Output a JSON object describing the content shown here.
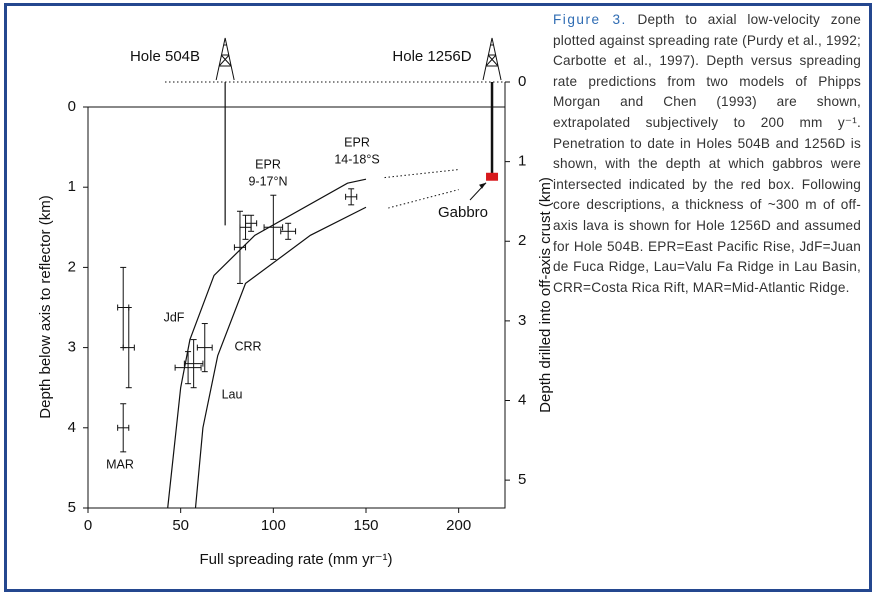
{
  "chart_data": {
    "type": "scatter",
    "xlabel": "Full spreading rate (mm yr⁻¹)",
    "ylabel": "Depth below axis to reflector (km)",
    "y2label": "Depth drilled into off-axis crust (km)",
    "xlim": [
      0,
      225
    ],
    "xticks": [
      0,
      50,
      100,
      150,
      200
    ],
    "ylim": [
      0,
      5
    ],
    "yticks": [
      0,
      1,
      2,
      3,
      4,
      5
    ],
    "y2lim": [
      0,
      5.35
    ],
    "y2ticks": [
      0,
      1,
      2,
      3,
      4,
      5
    ],
    "points": {
      "x": [
        19,
        22,
        19,
        54,
        57,
        63,
        82,
        85,
        88,
        100,
        108,
        142
      ],
      "y": [
        2.5,
        3.0,
        4.0,
        3.25,
        3.2,
        3.0,
        1.75,
        1.5,
        1.45,
        1.5,
        1.55,
        1.12
      ],
      "xerr": [
        3,
        3,
        3,
        7,
        5,
        4,
        3,
        3,
        3,
        5,
        4,
        3
      ],
      "yerr": [
        0.5,
        0.5,
        0.3,
        0.2,
        0.3,
        0.3,
        0.45,
        0.15,
        0.1,
        0.4,
        0.1,
        0.1
      ]
    },
    "curves": [
      {
        "x": [
          43,
          50,
          55,
          68,
          90,
          140,
          150
        ],
        "y": [
          5,
          3.5,
          2.9,
          2.1,
          1.6,
          0.95,
          0.9
        ]
      },
      {
        "x": [
          58,
          62,
          70,
          85,
          120,
          150
        ],
        "y": [
          5,
          4,
          3.1,
          2.2,
          1.6,
          1.25
        ]
      }
    ],
    "extrapolations": [
      {
        "x": [
          160,
          200
        ],
        "y": [
          0.88,
          0.78
        ]
      },
      {
        "x": [
          162,
          200
        ],
        "y": [
          1.26,
          1.03
        ]
      }
    ],
    "holes": [
      {
        "label": "Hole 504B",
        "x": 74,
        "depth": 1.8
      },
      {
        "label": "Hole 1256D",
        "x": 218,
        "depth": 1.2
      }
    ],
    "gabbro": {
      "label": "Gabbro",
      "depth": [
        1.14,
        1.24
      ],
      "color": "#d7191c"
    },
    "annotations": [
      [
        "EPR",
        "9-17°N"
      ],
      [
        "EPR",
        "14-18°S"
      ],
      [
        "JdF"
      ],
      [
        "CRR"
      ],
      [
        "Lau"
      ],
      [
        "MAR"
      ]
    ]
  },
  "caption": {
    "label": "Figure 3.",
    "text": "Depth to axial low-velocity zone plotted against spreading rate (Purdy et al., 1992; Carbotte et al., 1997). Depth versus spreading rate predictions from two models of Phipps Morgan and Chen (1993) are shown, extrapolated subjectively to 200 mm y⁻¹. Penetration to date in Holes 504B and 1256D is shown, with the depth at which gabbros were intersected indicated by the red box. Following core descriptions, a thickness of ~300 m of off-axis lava is shown for Hole 1256D and assumed for Hole 504B. EPR=East Pacific Rise, JdF=Juan de Fuca Ridge, Lau=Valu Fa Ridge in Lau Basin, CRR=Costa Rica Rift, MAR=Mid-Atlantic Ridge."
  }
}
